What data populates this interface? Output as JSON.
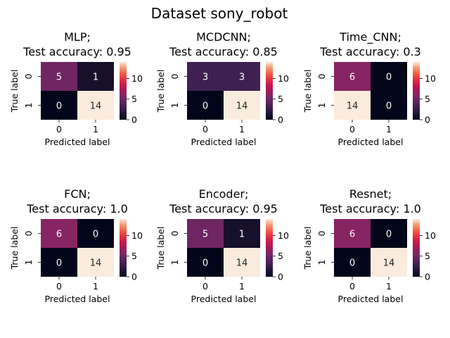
{
  "figure": {
    "title": "Dataset sony_robot"
  },
  "chart_data": [
    {
      "type": "heatmap",
      "title": [
        "MLP;",
        "Test accuracy: 0.95"
      ],
      "xlabel": "Predicted label",
      "ylabel": "True label",
      "x_categories": [
        "0",
        "1"
      ],
      "y_categories": [
        "0",
        "1"
      ],
      "matrix": [
        [
          5,
          1
        ],
        [
          0,
          14
        ]
      ],
      "colorbar": {
        "range": [
          0,
          14
        ],
        "ticks": [
          0,
          5,
          10
        ]
      }
    },
    {
      "type": "heatmap",
      "title": [
        "MCDCNN;",
        "Test accuracy: 0.85"
      ],
      "xlabel": "Predicted label",
      "ylabel": "True label",
      "x_categories": [
        "0",
        "1"
      ],
      "y_categories": [
        "0",
        "1"
      ],
      "matrix": [
        [
          3,
          3
        ],
        [
          0,
          14
        ]
      ],
      "colorbar": {
        "range": [
          0,
          14
        ],
        "ticks": [
          0,
          5,
          10
        ]
      }
    },
    {
      "type": "heatmap",
      "title": [
        "Time_CNN;",
        "Test accuracy: 0.3"
      ],
      "xlabel": "Predicted label",
      "ylabel": "True label",
      "x_categories": [
        "0",
        "1"
      ],
      "y_categories": [
        "0",
        "1"
      ],
      "matrix": [
        [
          6,
          0
        ],
        [
          14,
          0
        ]
      ],
      "colorbar": {
        "range": [
          0,
          14
        ],
        "ticks": [
          0,
          5,
          10
        ]
      }
    },
    {
      "type": "heatmap",
      "title": [
        "FCN;",
        "Test accuracy: 1.0"
      ],
      "xlabel": "Predicted label",
      "ylabel": "True label",
      "x_categories": [
        "0",
        "1"
      ],
      "y_categories": [
        "0",
        "1"
      ],
      "matrix": [
        [
          6,
          0
        ],
        [
          0,
          14
        ]
      ],
      "colorbar": {
        "range": [
          0,
          14
        ],
        "ticks": [
          0,
          5,
          10
        ]
      }
    },
    {
      "type": "heatmap",
      "title": [
        "Encoder;",
        "Test accuracy: 0.95"
      ],
      "xlabel": "Predicted label",
      "ylabel": "True label",
      "x_categories": [
        "0",
        "1"
      ],
      "y_categories": [
        "0",
        "1"
      ],
      "matrix": [
        [
          5,
          1
        ],
        [
          0,
          14
        ]
      ],
      "colorbar": {
        "range": [
          0,
          14
        ],
        "ticks": [
          0,
          5,
          10
        ]
      }
    },
    {
      "type": "heatmap",
      "title": [
        "Resnet;",
        "Test accuracy: 1.0"
      ],
      "xlabel": "Predicted label",
      "ylabel": "True label",
      "x_categories": [
        "0",
        "1"
      ],
      "y_categories": [
        "0",
        "1"
      ],
      "matrix": [
        [
          6,
          0
        ],
        [
          0,
          14
        ]
      ],
      "colorbar": {
        "range": [
          0,
          14
        ],
        "ticks": [
          0,
          5,
          10
        ]
      }
    }
  ]
}
